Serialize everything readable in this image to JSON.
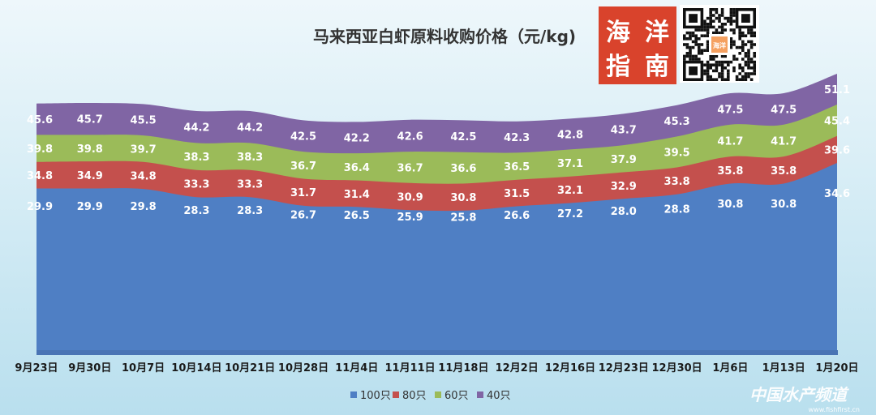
{
  "chart_data": {
    "type": "area",
    "title": "马来西亚白虾原料收购价格（元/kg)",
    "categories": [
      "9月23日",
      "9月30日",
      "10月7日",
      "10月14日",
      "10月21日",
      "10月28日",
      "11月4日",
      "11月11日",
      "11月18日",
      "12月2日",
      "12月16日",
      "12月23日",
      "12月30日",
      "1月6日",
      "1月13日",
      "1月20日"
    ],
    "series": [
      {
        "name": "100只",
        "color": "#4f7fc4",
        "values": [
          29.9,
          29.9,
          29.8,
          28.3,
          28.3,
          26.7,
          26.5,
          25.9,
          25.8,
          26.6,
          27.2,
          28.0,
          28.8,
          30.8,
          30.8,
          34.6
        ]
      },
      {
        "name": "80只",
        "color": "#c4504d",
        "values": [
          34.8,
          34.9,
          34.8,
          33.3,
          33.3,
          31.7,
          31.4,
          30.9,
          30.8,
          31.5,
          32.1,
          32.9,
          33.8,
          35.8,
          35.8,
          39.6
        ]
      },
      {
        "name": "60只",
        "color": "#9bbb59",
        "values": [
          39.8,
          39.8,
          39.7,
          38.3,
          38.3,
          36.7,
          36.4,
          36.7,
          36.6,
          36.5,
          37.1,
          37.9,
          39.5,
          41.7,
          41.7,
          45.4
        ]
      },
      {
        "name": "40只",
        "color": "#8065a4",
        "values": [
          45.6,
          45.7,
          45.5,
          44.2,
          44.2,
          42.5,
          42.2,
          42.6,
          42.5,
          42.3,
          42.8,
          43.7,
          45.3,
          47.5,
          47.5,
          51.1
        ]
      }
    ],
    "stacked": false,
    "legend_position": "bottom",
    "grid": false,
    "xlabel": "",
    "ylabel": ""
  },
  "logo": {
    "text": "海洋指南",
    "colors": {
      "bg": "#d9432c"
    }
  },
  "qr": {
    "center_text": "海洋指南"
  },
  "watermark": {
    "main": "中国水产频道",
    "sub": "www.fishfirst.cn"
  }
}
